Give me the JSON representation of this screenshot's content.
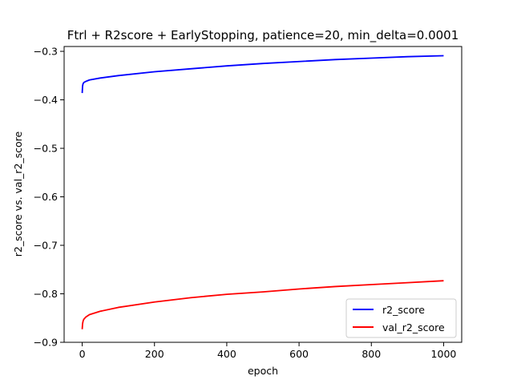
{
  "chart_data": {
    "type": "line",
    "title": "Ftrl + R2score + EarlyStopping, patience=20, min_delta=0.0001",
    "xlabel": "epoch",
    "ylabel": "r2_score vs. val_r2_score",
    "xlim": [
      -50,
      1050
    ],
    "ylim": [
      -0.9,
      -0.29
    ],
    "xticks": [
      0,
      200,
      400,
      600,
      800,
      1000
    ],
    "xtick_labels": [
      "0",
      "200",
      "400",
      "600",
      "800",
      "1000"
    ],
    "yticks": [
      -0.9,
      -0.8,
      -0.7,
      -0.6,
      -0.5,
      -0.4,
      -0.3
    ],
    "ytick_labels": [
      "−0.9",
      "−0.8",
      "−0.7",
      "−0.6",
      "−0.5",
      "−0.4",
      "−0.3"
    ],
    "grid": false,
    "legend_position": "lower-right",
    "series": [
      {
        "name": "r2_score",
        "color": "#0000ff",
        "x": [
          0,
          1,
          2,
          3,
          5,
          10,
          20,
          50,
          100,
          200,
          300,
          400,
          500,
          600,
          700,
          800,
          900,
          1000
        ],
        "y": [
          -0.386,
          -0.372,
          -0.368,
          -0.366,
          -0.364,
          -0.362,
          -0.359,
          -0.355,
          -0.35,
          -0.342,
          -0.336,
          -0.33,
          -0.325,
          -0.321,
          -0.317,
          -0.314,
          -0.311,
          -0.309
        ]
      },
      {
        "name": "val_r2_score",
        "color": "#ff0000",
        "x": [
          0,
          1,
          2,
          3,
          5,
          10,
          20,
          50,
          100,
          200,
          300,
          400,
          500,
          600,
          700,
          800,
          900,
          1000
        ],
        "y": [
          -0.873,
          -0.862,
          -0.858,
          -0.855,
          -0.852,
          -0.848,
          -0.843,
          -0.836,
          -0.828,
          -0.817,
          -0.808,
          -0.801,
          -0.796,
          -0.79,
          -0.785,
          -0.781,
          -0.777,
          -0.773
        ]
      }
    ]
  }
}
